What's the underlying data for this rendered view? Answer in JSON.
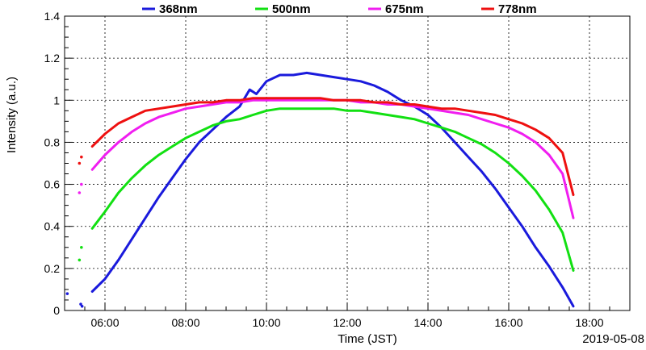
{
  "chart_data": {
    "type": "line",
    "title": "",
    "xlabel": "Time (JST)",
    "ylabel": "Intensity (a.u.)",
    "date_label": "2019-05-08",
    "xlim": [
      "05:00",
      "19:00"
    ],
    "ylim": [
      0,
      1.4
    ],
    "x_ticks": [
      "06:00",
      "08:00",
      "10:00",
      "12:00",
      "14:00",
      "16:00",
      "18:00"
    ],
    "y_ticks": [
      "0",
      "0.2",
      "0.4",
      "0.6",
      "0.8",
      "1",
      "1.2",
      "1.4"
    ],
    "grid": true,
    "legend_position": "top",
    "series": [
      {
        "name": "368nm",
        "color": "#1a1adc",
        "x": [
          "05:04",
          "05:24",
          "05:26",
          "05:41",
          "06:00",
          "06:20",
          "06:40",
          "07:00",
          "07:20",
          "07:40",
          "08:00",
          "08:20",
          "08:40",
          "09:00",
          "09:20",
          "09:35",
          "09:45",
          "10:00",
          "10:20",
          "10:40",
          "11:00",
          "11:20",
          "11:40",
          "12:00",
          "12:20",
          "12:40",
          "13:00",
          "13:20",
          "13:40",
          "14:00",
          "14:20",
          "14:40",
          "15:00",
          "15:20",
          "15:40",
          "16:00",
          "16:20",
          "16:40",
          "17:00",
          "17:20",
          "17:36"
        ],
        "values": [
          0.08,
          0.03,
          0.02,
          0.09,
          0.15,
          0.24,
          0.34,
          0.44,
          0.54,
          0.63,
          0.72,
          0.8,
          0.86,
          0.92,
          0.97,
          1.05,
          1.03,
          1.09,
          1.12,
          1.12,
          1.13,
          1.12,
          1.11,
          1.1,
          1.09,
          1.07,
          1.04,
          1.0,
          0.97,
          0.93,
          0.87,
          0.8,
          0.73,
          0.66,
          0.58,
          0.49,
          0.4,
          0.3,
          0.21,
          0.11,
          0.02
        ]
      },
      {
        "name": "500nm",
        "color": "#12e012",
        "x": [
          "05:22",
          "05:25",
          "05:41",
          "06:00",
          "06:20",
          "06:40",
          "07:00",
          "07:20",
          "07:40",
          "08:00",
          "08:20",
          "08:40",
          "09:00",
          "09:20",
          "09:40",
          "10:00",
          "10:20",
          "10:40",
          "11:00",
          "11:20",
          "11:40",
          "12:00",
          "12:20",
          "12:40",
          "13:00",
          "13:20",
          "13:40",
          "14:00",
          "14:20",
          "14:40",
          "15:00",
          "15:20",
          "15:40",
          "16:00",
          "16:20",
          "16:40",
          "17:00",
          "17:20",
          "17:36"
        ],
        "values": [
          0.24,
          0.3,
          0.39,
          0.47,
          0.56,
          0.63,
          0.69,
          0.74,
          0.78,
          0.82,
          0.85,
          0.88,
          0.9,
          0.91,
          0.93,
          0.95,
          0.96,
          0.96,
          0.96,
          0.96,
          0.96,
          0.95,
          0.95,
          0.94,
          0.93,
          0.92,
          0.91,
          0.89,
          0.87,
          0.85,
          0.82,
          0.79,
          0.75,
          0.7,
          0.64,
          0.57,
          0.48,
          0.37,
          0.19
        ]
      },
      {
        "name": "675nm",
        "color": "#f01ef0",
        "x": [
          "05:22",
          "05:25",
          "05:41",
          "06:00",
          "06:20",
          "06:40",
          "07:00",
          "07:20",
          "07:40",
          "08:00",
          "08:20",
          "08:40",
          "09:00",
          "09:20",
          "09:40",
          "10:00",
          "10:20",
          "10:40",
          "11:00",
          "11:20",
          "11:40",
          "12:00",
          "12:20",
          "12:40",
          "13:00",
          "13:20",
          "13:40",
          "14:00",
          "14:20",
          "14:40",
          "15:00",
          "15:20",
          "15:40",
          "16:00",
          "16:20",
          "16:40",
          "17:00",
          "17:20",
          "17:36"
        ],
        "values": [
          0.56,
          0.6,
          0.67,
          0.74,
          0.8,
          0.85,
          0.89,
          0.92,
          0.94,
          0.96,
          0.97,
          0.98,
          0.99,
          0.99,
          1.0,
          1.0,
          1.0,
          1.0,
          1.0,
          1.0,
          1.0,
          1.0,
          0.99,
          0.99,
          0.98,
          0.98,
          0.97,
          0.96,
          0.95,
          0.94,
          0.93,
          0.91,
          0.89,
          0.87,
          0.84,
          0.8,
          0.74,
          0.65,
          0.44
        ]
      },
      {
        "name": "778nm",
        "color": "#ee1010",
        "x": [
          "05:22",
          "05:25",
          "05:41",
          "06:00",
          "06:20",
          "06:40",
          "07:00",
          "07:20",
          "07:40",
          "08:00",
          "08:20",
          "08:40",
          "09:00",
          "09:20",
          "09:40",
          "10:00",
          "10:20",
          "10:40",
          "11:00",
          "11:20",
          "11:40",
          "12:00",
          "12:20",
          "12:40",
          "13:00",
          "13:20",
          "13:40",
          "14:00",
          "14:20",
          "14:40",
          "15:00",
          "15:20",
          "15:40",
          "16:00",
          "16:20",
          "16:40",
          "17:00",
          "17:20",
          "17:36"
        ],
        "values": [
          0.7,
          0.73,
          0.78,
          0.84,
          0.89,
          0.92,
          0.95,
          0.96,
          0.97,
          0.98,
          0.99,
          0.99,
          1.0,
          1.0,
          1.01,
          1.01,
          1.01,
          1.01,
          1.01,
          1.01,
          1.0,
          1.0,
          1.0,
          0.99,
          0.99,
          0.98,
          0.98,
          0.97,
          0.96,
          0.96,
          0.95,
          0.94,
          0.93,
          0.91,
          0.89,
          0.86,
          0.82,
          0.75,
          0.55
        ]
      }
    ]
  }
}
